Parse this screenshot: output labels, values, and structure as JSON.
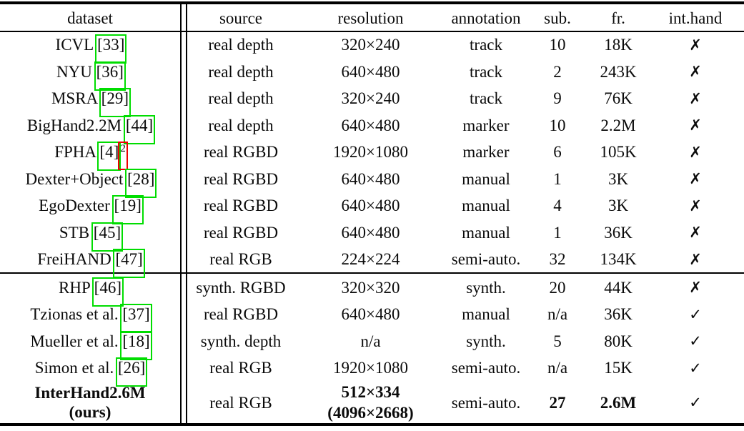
{
  "page": {
    "background": "#ffffff",
    "text_color": "#0b0b0b",
    "rule_color": "#000000"
  },
  "annotation_colors": {
    "citation_box": "#00dd00",
    "superscript_box": "#ee0000"
  },
  "glyphs": {
    "yes": "✓",
    "no": "✗"
  },
  "table": {
    "columns": [
      "dataset",
      "source",
      "resolution",
      "annotation",
      "sub.",
      "fr.",
      "int.hand"
    ],
    "rows": [
      {
        "dataset": "ICVL",
        "cite": "33",
        "source": "real depth",
        "resolution": "320×240",
        "annotation": "track",
        "sub": "10",
        "fr": "18K",
        "int_hand": "no"
      },
      {
        "dataset": "NYU",
        "cite": "36",
        "source": "real depth",
        "resolution": "640×480",
        "annotation": "track",
        "sub": "2",
        "fr": "243K",
        "int_hand": "no"
      },
      {
        "dataset": "MSRA",
        "cite": "29",
        "source": "real depth",
        "resolution": "320×240",
        "annotation": "track",
        "sub": "9",
        "fr": "76K",
        "int_hand": "no"
      },
      {
        "dataset": "BigHand2.2M",
        "cite": "44",
        "source": "real depth",
        "resolution": "640×480",
        "annotation": "marker",
        "sub": "10",
        "fr": "2.2M",
        "int_hand": "no"
      },
      {
        "dataset": "FPHA",
        "cite": "4",
        "superscript": "2",
        "source": "real RGBD",
        "resolution": "1920×1080",
        "annotation": "marker",
        "sub": "6",
        "fr": "105K",
        "int_hand": "no"
      },
      {
        "dataset": "Dexter+Object",
        "cite": "28",
        "source": "real RGBD",
        "resolution": "640×480",
        "annotation": "manual",
        "sub": "1",
        "fr": "3K",
        "int_hand": "no"
      },
      {
        "dataset": "EgoDexter",
        "cite": "19",
        "source": "real RGBD",
        "resolution": "640×480",
        "annotation": "manual",
        "sub": "4",
        "fr": "3K",
        "int_hand": "no"
      },
      {
        "dataset": "STB",
        "cite": "45",
        "source": "real RGBD",
        "resolution": "640×480",
        "annotation": "manual",
        "sub": "1",
        "fr": "36K",
        "int_hand": "no"
      },
      {
        "dataset": "FreiHAND",
        "cite": "47",
        "source": "real RGB",
        "resolution": "224×224",
        "annotation": "semi-auto.",
        "sub": "32",
        "fr": "134K",
        "int_hand": "no"
      },
      {
        "dataset": "RHP",
        "cite": "46",
        "source": "synth. RGBD",
        "resolution": "320×320",
        "annotation": "synth.",
        "sub": "20",
        "fr": "44K",
        "int_hand": "no",
        "group_start": true
      },
      {
        "dataset": "Tzionas et al.",
        "cite": "37",
        "source": "real RGBD",
        "resolution": "640×480",
        "annotation": "manual",
        "sub": "n/a",
        "fr": "36K",
        "int_hand": "yes"
      },
      {
        "dataset": "Mueller et al.",
        "cite": "18",
        "source": "synth. depth",
        "resolution": "n/a",
        "annotation": "synth.",
        "sub": "5",
        "fr": "80K",
        "int_hand": "yes"
      },
      {
        "dataset": "Simon et al.",
        "cite": "26",
        "source": "real RGB",
        "resolution": "1920×1080",
        "annotation": "semi-auto.",
        "sub": "n/a",
        "fr": "15K",
        "int_hand": "yes"
      },
      {
        "dataset": "InterHand2.6M",
        "dataset_line2": "(ours)",
        "source": "real RGB",
        "resolution": "512×334",
        "resolution_line2": "(4096×2668)",
        "annotation": "semi-auto.",
        "sub": "27",
        "fr": "2.6M",
        "int_hand": "yes",
        "bold_cells": [
          "dataset",
          "resolution",
          "sub",
          "fr"
        ],
        "tall": true
      }
    ]
  }
}
